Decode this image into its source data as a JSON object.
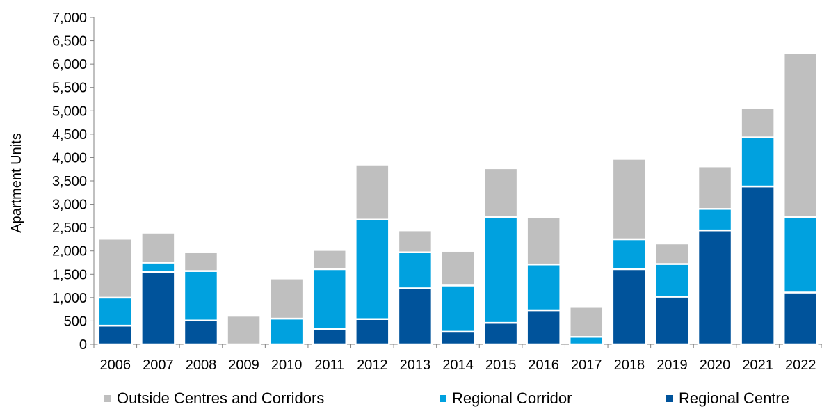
{
  "chart_data": {
    "type": "bar",
    "stacked": true,
    "title": "",
    "xlabel": "",
    "ylabel": "Apartment Units",
    "ylim": [
      0,
      7000
    ],
    "yticks": [
      "0",
      "500",
      "1,000",
      "1,500",
      "2,000",
      "2,500",
      "3,000",
      "3,500",
      "4,000",
      "4,500",
      "5,000",
      "5,500",
      "6,000",
      "6,500",
      "7,000"
    ],
    "ytick_values": [
      0,
      500,
      1000,
      1500,
      2000,
      2500,
      3000,
      3500,
      4000,
      4500,
      5000,
      5500,
      6000,
      6500,
      7000
    ],
    "grid": false,
    "legend_position": "bottom",
    "categories": [
      "2006",
      "2007",
      "2008",
      "2009",
      "2010",
      "2011",
      "2012",
      "2013",
      "2014",
      "2015",
      "2016",
      "2017",
      "2018",
      "2019",
      "2020",
      "2021",
      "2022"
    ],
    "series": [
      {
        "name": "Regional Centre",
        "color": "#00539b",
        "values": [
          400,
          1550,
          510,
          0,
          0,
          330,
          540,
          1200,
          270,
          460,
          730,
          0,
          1610,
          1020,
          2440,
          3380,
          1110
        ]
      },
      {
        "name": "Regional Corridor",
        "color": "#00a1df",
        "values": [
          600,
          200,
          1060,
          0,
          550,
          1280,
          2130,
          770,
          990,
          2270,
          980,
          160,
          640,
          700,
          460,
          1050,
          1620
        ]
      },
      {
        "name": "Outside Centres and Corridors",
        "color": "#bfbfbf",
        "values": [
          1260,
          640,
          400,
          610,
          860,
          410,
          1180,
          470,
          740,
          1040,
          1010,
          640,
          1720,
          440,
          910,
          630,
          3500
        ]
      }
    ],
    "legend_order": [
      "Outside Centres and Corridors",
      "Regional Corridor",
      "Regional Centre"
    ]
  }
}
